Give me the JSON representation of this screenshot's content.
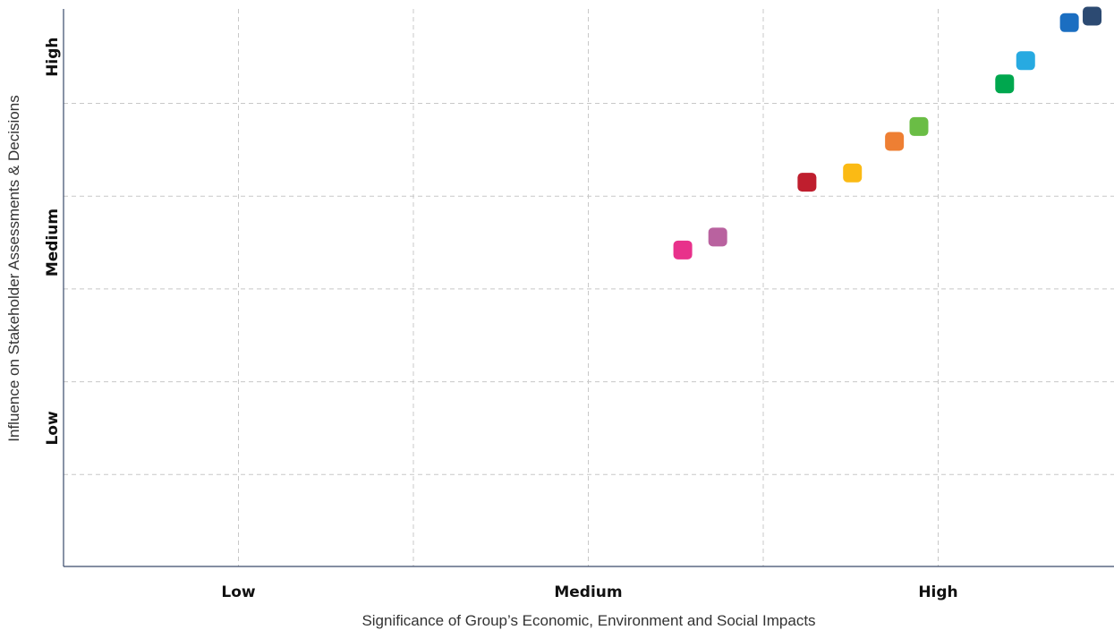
{
  "chart_data": {
    "type": "scatter",
    "title": "",
    "xlabel": "Significance of Group’s Economic, Environment and Social Impacts",
    "ylabel": "Influence on Stakeholder Assessments & Decisions",
    "xlim": [
      0,
      6
    ],
    "ylim": [
      0,
      6
    ],
    "grid": true,
    "x_tick_labels": [
      {
        "label": "Low",
        "value": 1
      },
      {
        "label": "Medium",
        "value": 3
      },
      {
        "label": "High",
        "value": 5
      }
    ],
    "y_tick_labels": [
      {
        "label": "Low",
        "value": 1
      },
      {
        "label": "Medium",
        "value": 3
      },
      {
        "label": "High",
        "value": 5
      }
    ],
    "points": [
      {
        "x": 3.54,
        "y": 3.42,
        "color": "#E8318B"
      },
      {
        "x": 3.74,
        "y": 3.56,
        "color": "#B9629F"
      },
      {
        "x": 4.25,
        "y": 4.15,
        "color": "#BF1E2E"
      },
      {
        "x": 4.51,
        "y": 4.25,
        "color": "#FBBA14"
      },
      {
        "x": 4.75,
        "y": 4.59,
        "color": "#EE7F33"
      },
      {
        "x": 4.89,
        "y": 4.75,
        "color": "#6ABD45"
      },
      {
        "x": 5.38,
        "y": 5.21,
        "color": "#00A74E"
      },
      {
        "x": 5.5,
        "y": 5.46,
        "color": "#27AAE1"
      },
      {
        "x": 5.75,
        "y": 5.87,
        "color": "#1B6EC1"
      },
      {
        "x": 5.88,
        "y": 5.94,
        "color": "#2C4A72"
      }
    ]
  }
}
